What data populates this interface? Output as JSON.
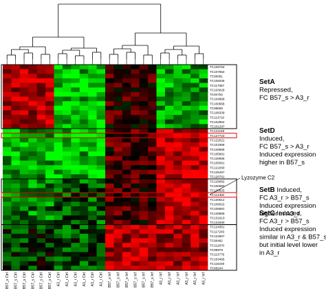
{
  "chart_data": {
    "type": "heatmap",
    "title": "",
    "xlabel": "",
    "ylabel": "",
    "colors": {
      "low": "#00ff00",
      "mid": "#000000",
      "high": "#ff0000"
    },
    "columns": [
      "B57_s Ctrl",
      "B57_s Ctrl",
      "B57_s Ctrl",
      "B57_s Ctrl",
      "B57_s Ctrl",
      "B57_s Ctrl",
      "A3_r Ctrl",
      "A3_r Ctrl",
      "A3_r Ctrl",
      "A3_r Ctrl",
      "A3_r Ctrl",
      "A3_r Ctrl",
      "B57_s Inf",
      "B57_s Inf",
      "B57_s Inf",
      "B57_s Inf",
      "B57_s Inf",
      "B57_s Inf",
      "A3_r Inf",
      "A3_r Inf",
      "A3_r Inf",
      "A3_r Inf",
      "A3_r Inf",
      "A3_r Inf"
    ],
    "genes": [
      "TC109784",
      "TC107654",
      "TC96081",
      "TC108326",
      "TC117957",
      "TC103029",
      "TC94752",
      "TC104869",
      "TC100958",
      "TC98559",
      "TC108339",
      "TC113710",
      "TC102964",
      "TC101297",
      "TC121159",
      "TC127723",
      "TC122021",
      "TC101958",
      "TC126866",
      "TC105891",
      "TC126655",
      "TC105061",
      "TC121050",
      "TC126457",
      "TC126761",
      "TC129082",
      "TC100950",
      "TC130625",
      "TC114300",
      "TC130612",
      "TC109022",
      "TC105891",
      "TC128869",
      "TC131913",
      "TC131560",
      "TC124361",
      "TC117203",
      "TC122607",
      "TC96482",
      "TC112870",
      "TC99979",
      "TC113779",
      "TC103465",
      "TC116249",
      "TC98244"
    ],
    "row_groups": [
      {
        "set": "SetA",
        "start": 0,
        "count": 14,
        "column_levels": [
          1.2,
          -1.3,
          0.4,
          -1.1
        ]
      },
      {
        "set": "SetD",
        "start": 14,
        "count": 11,
        "column_levels": [
          -1.2,
          -1.3,
          0.5,
          1.4
        ]
      },
      {
        "set": "SetB",
        "start": 25,
        "count": 10,
        "column_levels": [
          -0.9,
          -0.6,
          0.5,
          1.4
        ]
      },
      {
        "set": "SetC",
        "start": 35,
        "count": 10,
        "column_levels": [
          -0.3,
          -0.5,
          1.2,
          1.1
        ]
      }
    ],
    "highlighted_genes": [
      "TC127723",
      "TC114300"
    ]
  },
  "sets": [
    {
      "id": "setA",
      "title": "SetA",
      "lines": [
        "Repressed,",
        "FC B57_s > A3_r"
      ]
    },
    {
      "id": "setD",
      "title": "SetD",
      "lines": [
        "Induced,",
        "FC B57_s > A3_r",
        "Induced expression",
        "higher in B57_s"
      ]
    },
    {
      "id": "setB",
      "title": "SetB",
      "inline": "  Induced,",
      "lines": [
        "FC A3_r > B57_s",
        "Induced expression",
        " higher in A3_r"
      ]
    },
    {
      "id": "setC",
      "title": "SetC",
      "inline": "  Induced,",
      "lines": [
        "FC A3_r > B57_s",
        "Induced expression",
        "similar in A3_r & B57_s",
        "but initial level lower",
        "in A3_r"
      ]
    }
  ],
  "annotation": {
    "label": "Lyzozyme C2"
  }
}
